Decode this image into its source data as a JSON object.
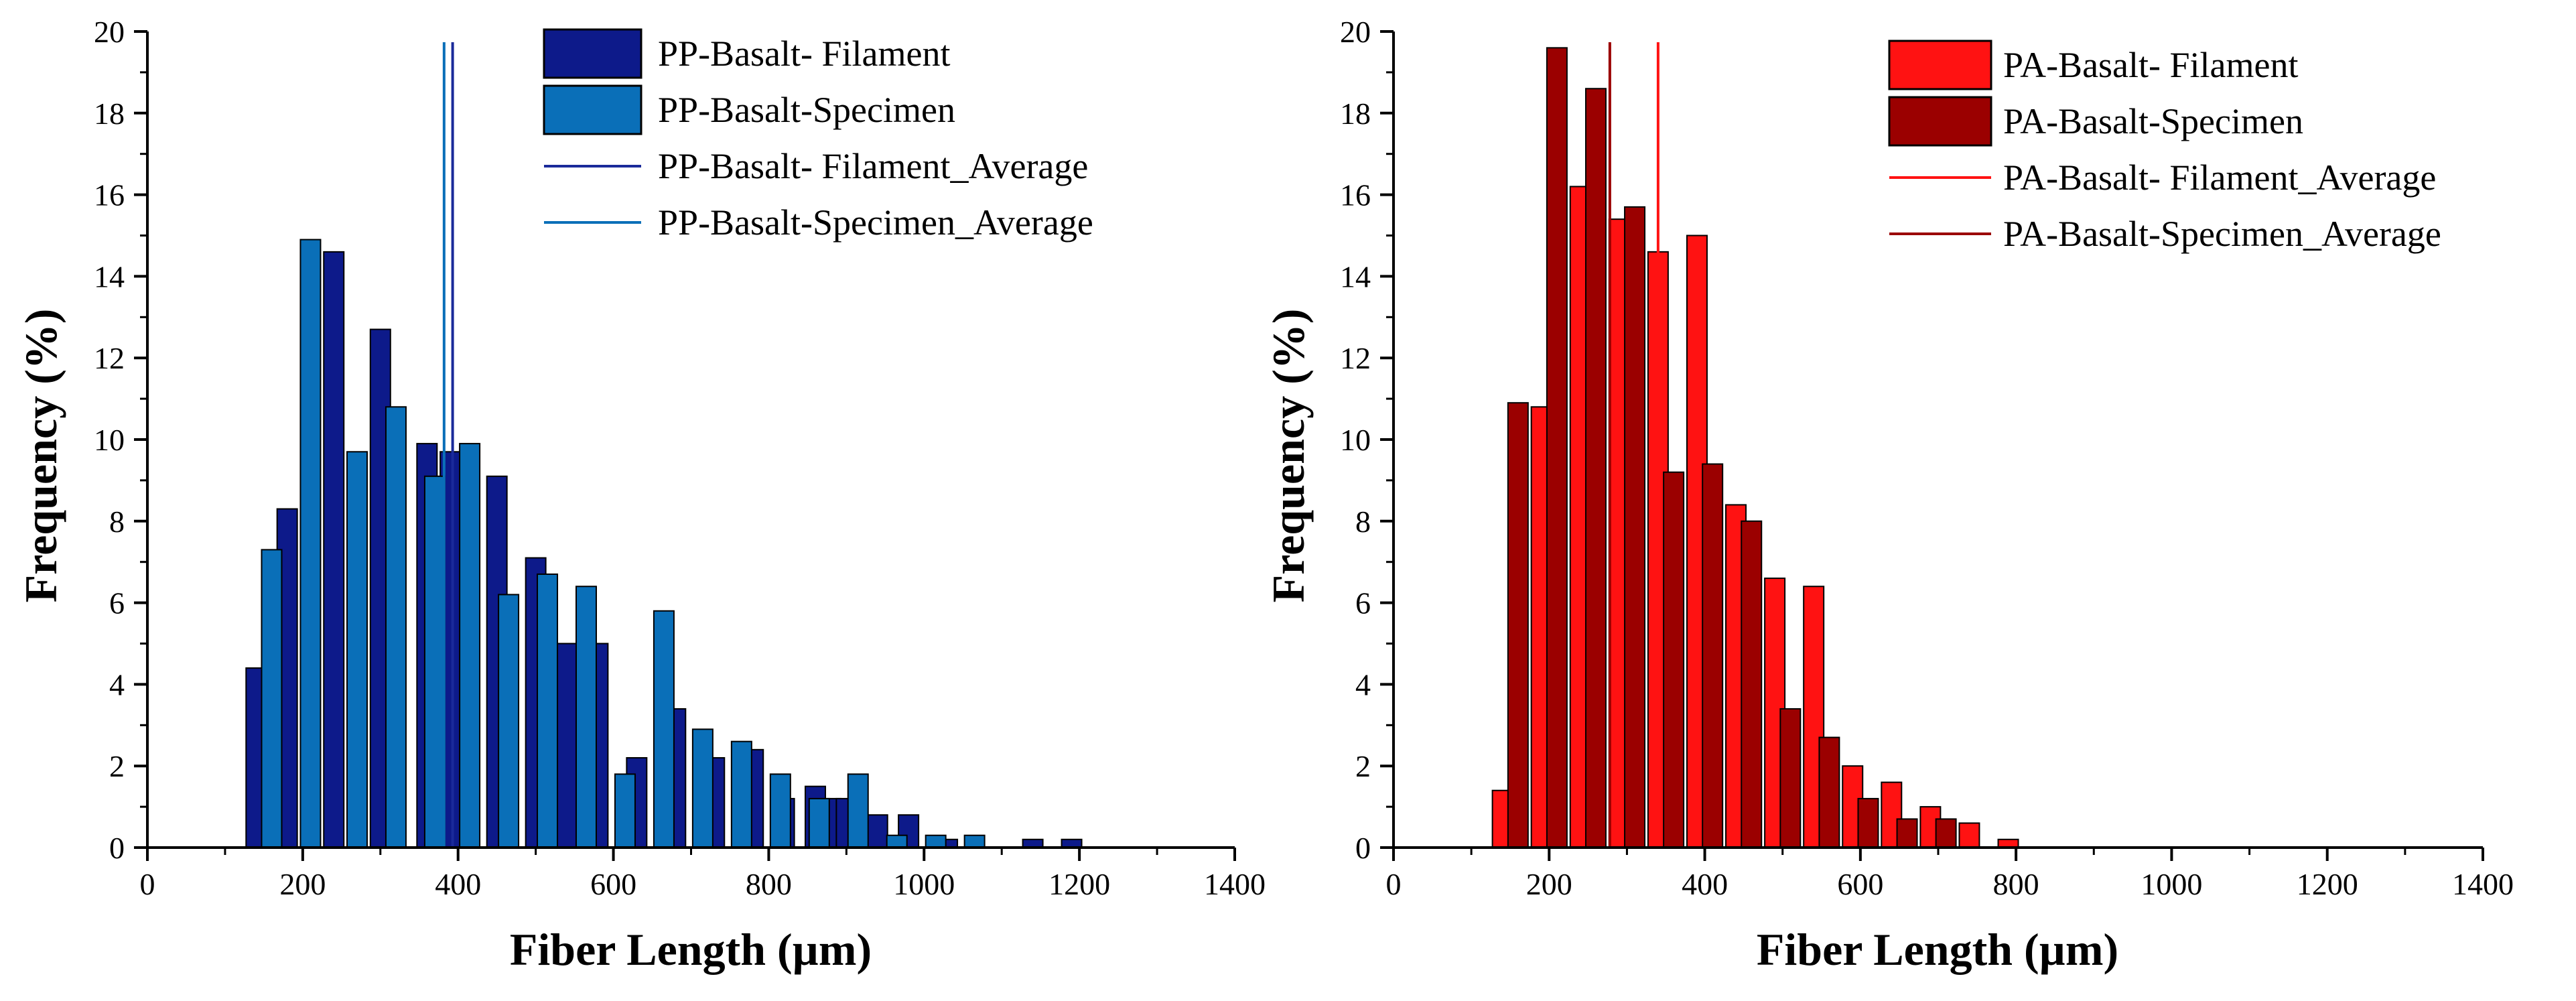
{
  "chart_data": [
    {
      "type": "bar",
      "xlabel": "Fiber Length (µm)",
      "ylabel": "Frequency (%)",
      "xlim": [
        0,
        1400
      ],
      "ylim": [
        0,
        20
      ],
      "xticks": [
        0,
        200,
        400,
        600,
        800,
        1000,
        1200,
        1400
      ],
      "yticks": [
        0,
        2,
        4,
        6,
        8,
        10,
        12,
        14,
        16,
        18,
        20
      ],
      "legend_position": "top-right",
      "series": [
        {
          "name": "PP-Basalt- Filament",
          "color": "#0d1a8a",
          "x": [
            140,
            180,
            240,
            300,
            360,
            390,
            450,
            500,
            540,
            580,
            630,
            680,
            730,
            780,
            820,
            860,
            880,
            900,
            940,
            980,
            1030,
            1140,
            1190
          ],
          "values": [
            4.4,
            8.3,
            14.6,
            12.7,
            9.9,
            9.7,
            9.1,
            7.1,
            5.0,
            5.0,
            2.2,
            3.4,
            2.2,
            2.4,
            1.2,
            1.5,
            1.2,
            1.2,
            0.8,
            0.8,
            0.2,
            0.2,
            0.2
          ]
        },
        {
          "name": "PP-Basalt-Specimen",
          "color": "#0a6fb8",
          "x": [
            160,
            210,
            270,
            320,
            370,
            415,
            465,
            515,
            565,
            615,
            665,
            715,
            765,
            815,
            865,
            915,
            965,
            1015,
            1065
          ],
          "values": [
            7.3,
            14.9,
            9.7,
            10.8,
            9.1,
            9.9,
            6.2,
            6.7,
            6.4,
            1.8,
            5.8,
            2.9,
            2.6,
            1.8,
            1.2,
            1.8,
            0.3,
            0.3,
            0.3
          ]
        }
      ],
      "averages": [
        {
          "name": "PP-Basalt- Filament_Average",
          "color": "#1a2a9a",
          "value": 393
        },
        {
          "name": "PP-Basalt-Specimen_Average",
          "color": "#0a6fb8",
          "value": 382
        }
      ]
    },
    {
      "type": "bar",
      "xlabel": "Fiber Length (µm)",
      "ylabel": "Frequency (%)",
      "xlim": [
        0,
        1400
      ],
      "ylim": [
        0,
        20
      ],
      "xticks": [
        0,
        200,
        400,
        600,
        800,
        1000,
        1200,
        1400
      ],
      "yticks": [
        0,
        2,
        4,
        6,
        8,
        10,
        12,
        14,
        16,
        18,
        20
      ],
      "legend_position": "top-right",
      "series": [
        {
          "name": "PA-Basalt- Filament",
          "color": "#ff1212",
          "x": [
            140,
            190,
            240,
            290,
            340,
            390,
            440,
            490,
            540,
            590,
            640,
            690,
            740,
            790
          ],
          "values": [
            1.4,
            10.8,
            16.2,
            15.4,
            14.6,
            15.0,
            8.4,
            6.6,
            6.4,
            2.0,
            1.6,
            1.0,
            0.6,
            0.2
          ]
        },
        {
          "name": "PA-Basalt-Specimen",
          "color": "#9b0000",
          "x": [
            160,
            210,
            260,
            310,
            360,
            410,
            460,
            510,
            560,
            610,
            660,
            710
          ],
          "values": [
            10.9,
            19.6,
            18.6,
            15.7,
            9.2,
            9.4,
            8.0,
            3.4,
            2.7,
            1.2,
            0.7,
            0.7
          ]
        }
      ],
      "averages": [
        {
          "name": "PA-Basalt- Filament_Average",
          "color": "#ff1212",
          "value": 340
        },
        {
          "name": "PA-Basalt-Specimen_Average",
          "color": "#9b0000",
          "value": 278
        }
      ]
    }
  ]
}
